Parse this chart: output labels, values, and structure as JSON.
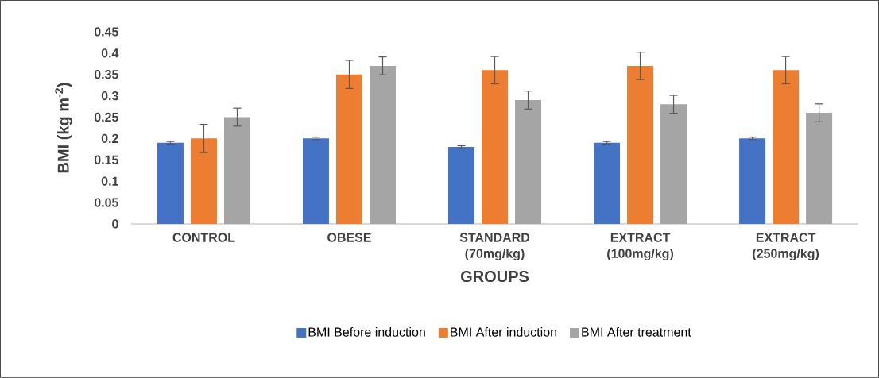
{
  "chart_data": {
    "type": "bar",
    "xlabel": "GROUPS",
    "ylabel": "BMI (kg m$^{-2}$)",
    "categories": [
      "CONTROL",
      "OBESE",
      "STANDARD (70mg/kg)",
      "EXTRACT (100mg/kg)",
      "EXTRACT (250mg/kg)"
    ],
    "series": [
      {
        "name": "BMI Before induction",
        "color": "#4472c4",
        "values": [
          0.19,
          0.2,
          0.18,
          0.19,
          0.2
        ],
        "errors": [
          0.003,
          0.003,
          0.003,
          0.003,
          0.003
        ]
      },
      {
        "name": "BMI After induction",
        "color": "#ed7d31",
        "values": [
          0.2,
          0.35,
          0.36,
          0.37,
          0.36
        ],
        "errors": [
          0.033,
          0.033,
          0.032,
          0.032,
          0.032
        ]
      },
      {
        "name": "BMI After treatment",
        "color": "#a5a5a5",
        "values": [
          0.25,
          0.37,
          0.29,
          0.28,
          0.26
        ],
        "errors": [
          0.021,
          0.021,
          0.021,
          0.021,
          0.021
        ]
      }
    ],
    "ylim": [
      0,
      0.45
    ],
    "yticks": [
      0,
      0.05,
      0.1,
      0.15,
      0.2,
      0.25,
      0.3,
      0.35,
      0.4,
      0.45
    ],
    "grid": false,
    "legend": "bottom"
  }
}
